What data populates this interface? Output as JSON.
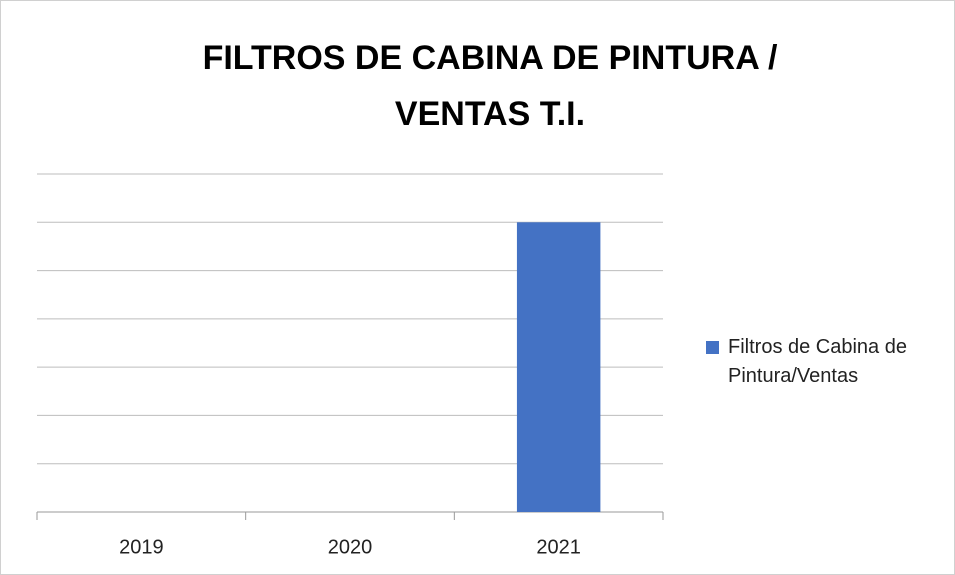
{
  "chart_data": {
    "type": "bar",
    "title": "FILTROS DE CABINA DE PINTURA / VENTAS T.I.",
    "categories": [
      "2019",
      "2020",
      "2021"
    ],
    "series": [
      {
        "name": "Filtros de Cabina de Pintura/Ventas",
        "color": "#4472c4",
        "values": [
          0,
          0,
          6
        ]
      }
    ],
    "ylim": [
      0,
      7
    ],
    "yticks": [
      0,
      1,
      2,
      3,
      4,
      5,
      6,
      7
    ],
    "grid": true,
    "legend": "right"
  }
}
